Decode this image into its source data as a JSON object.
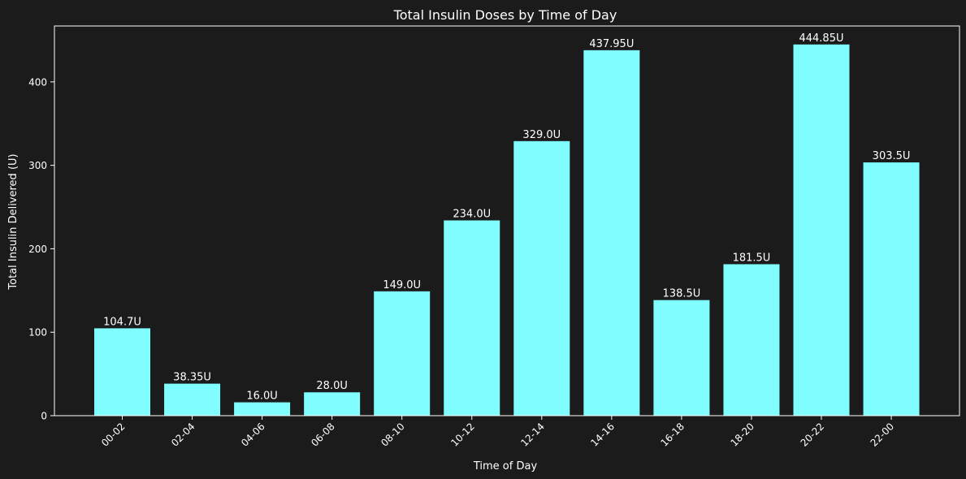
{
  "colors": {
    "background": "#1b1b1b",
    "bar": "#7ffdff",
    "text": "#ffffff",
    "axis": "#ffffff"
  },
  "chart_data": {
    "type": "bar",
    "title": "Total Insulin Doses by Time of Day",
    "xlabel": "Time of Day",
    "ylabel": "Total Insulin Delivered (U)",
    "categories": [
      "00-02",
      "02-04",
      "04-06",
      "06-08",
      "08-10",
      "10-12",
      "12-14",
      "14-16",
      "16-18",
      "18-20",
      "20-22",
      "22-00"
    ],
    "values": [
      104.7,
      38.35,
      16.0,
      28.0,
      149.0,
      234.0,
      329.0,
      437.95,
      138.5,
      181.5,
      444.85,
      303.5
    ],
    "data_labels": [
      "104.7U",
      "38.35U",
      "16.0U",
      "28.0U",
      "149.0U",
      "234.0U",
      "329.0U",
      "437.95U",
      "138.5U",
      "181.5U",
      "444.85U",
      "303.5U"
    ],
    "yticks": [
      0,
      100,
      200,
      300,
      400
    ],
    "ylim": [
      0,
      467
    ],
    "grid": false,
    "legend": null,
    "xtick_rotation": 45
  }
}
